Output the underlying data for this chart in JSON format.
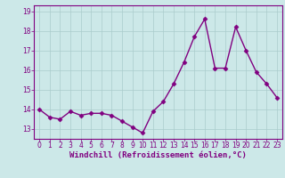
{
  "x": [
    0,
    1,
    2,
    3,
    4,
    5,
    6,
    7,
    8,
    9,
    10,
    11,
    12,
    13,
    14,
    15,
    16,
    17,
    18,
    19,
    20,
    21,
    22,
    23
  ],
  "y": [
    14.0,
    13.6,
    13.5,
    13.9,
    13.7,
    13.8,
    13.8,
    13.7,
    13.4,
    13.1,
    12.8,
    13.9,
    14.4,
    15.3,
    16.4,
    17.7,
    18.6,
    16.1,
    16.1,
    18.2,
    17.0,
    15.9,
    15.3,
    14.6
  ],
  "line_color": "#800080",
  "marker": "D",
  "markersize": 2.5,
  "linewidth": 1.0,
  "xlabel": "Windchill (Refroidissement éolien,°C)",
  "xlabel_fontsize": 6.5,
  "xlabel_color": "#800080",
  "ylabel_ticks": [
    13,
    14,
    15,
    16,
    17,
    18,
    19
  ],
  "xlim": [
    -0.5,
    23.5
  ],
  "ylim": [
    12.5,
    19.3
  ],
  "bg_color": "#cce8e8",
  "grid_color": "#aacccc",
  "tick_color": "#800080",
  "tick_fontsize": 5.5,
  "spine_color": "#800080",
  "xtick_labels": [
    "0",
    "1",
    "2",
    "3",
    "4",
    "5",
    "6",
    "7",
    "8",
    "9",
    "10",
    "11",
    "12",
    "13",
    "14",
    "15",
    "16",
    "17",
    "18",
    "19",
    "20",
    "21",
    "22",
    "23"
  ]
}
